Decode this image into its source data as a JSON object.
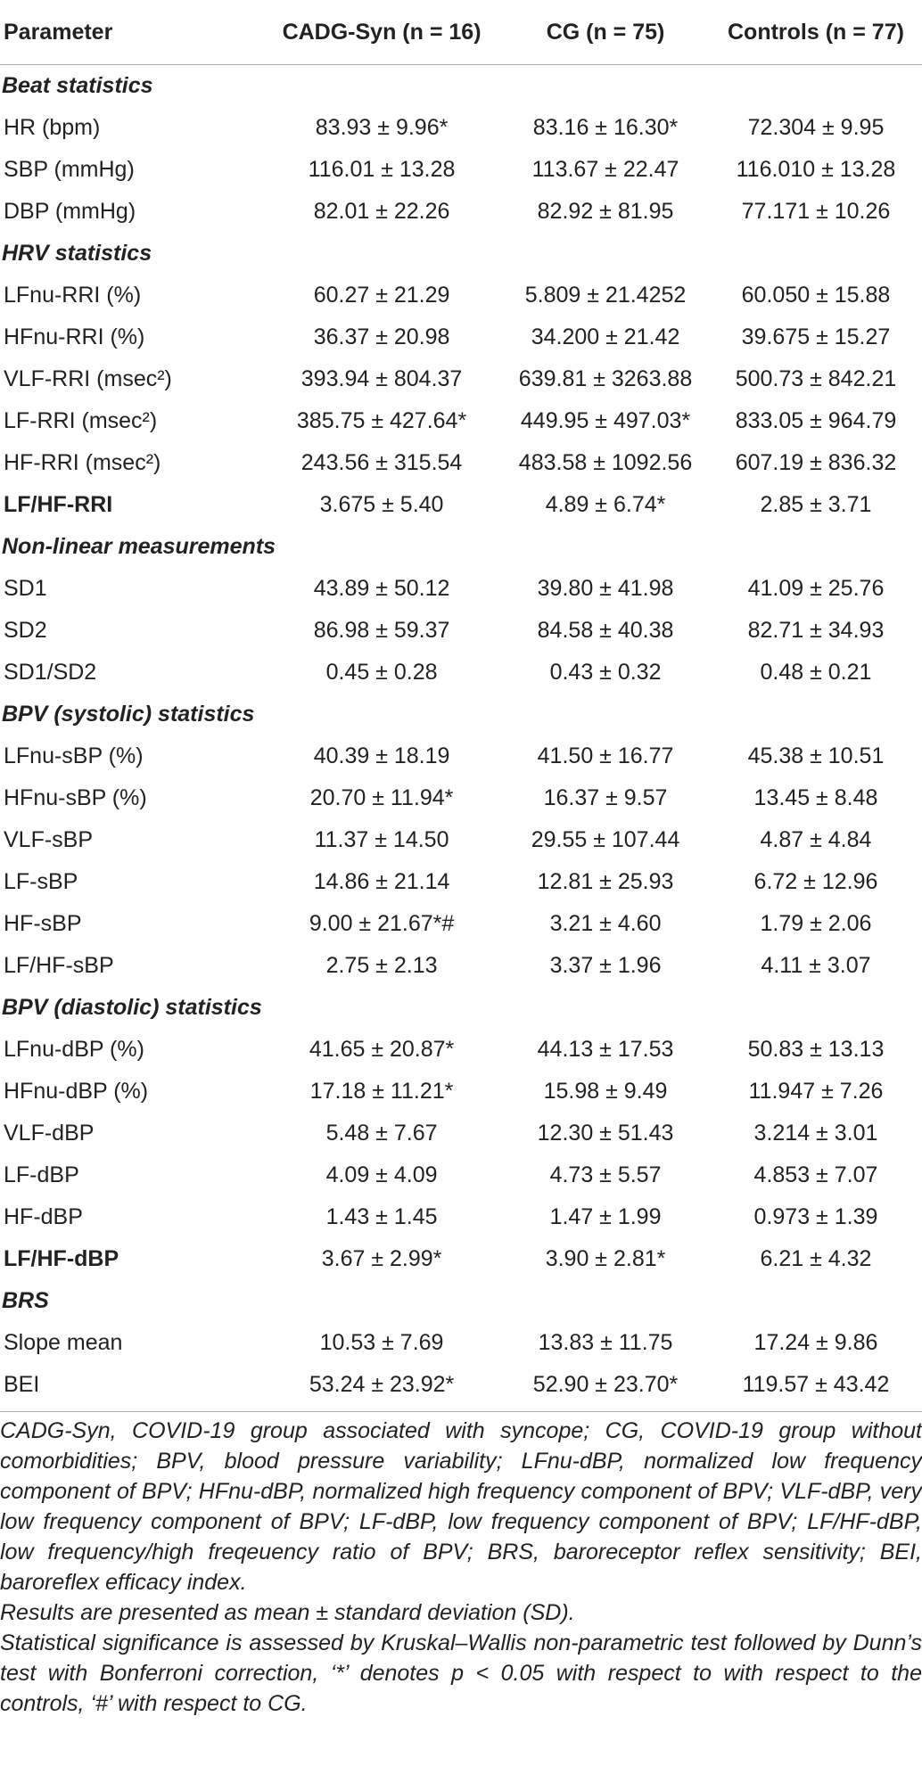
{
  "table": {
    "columns": [
      "Parameter",
      "CADG-Syn (n = 16)",
      "CG (n = 75)",
      "Controls (n = 77)"
    ],
    "sections": [
      {
        "title": "Beat statistics",
        "rows": [
          {
            "parameter": "HR (bpm)",
            "values": [
              "83.93 ± 9.96*",
              "83.16 ± 16.30*",
              "72.304 ± 9.95"
            ]
          },
          {
            "parameter": "SBP (mmHg)",
            "values": [
              "116.01 ± 13.28",
              "113.67 ± 22.47",
              "116.010 ± 13.28"
            ]
          },
          {
            "parameter": "DBP (mmHg)",
            "values": [
              "82.01 ± 22.26",
              "82.92 ± 81.95",
              "77.171 ± 10.26"
            ]
          }
        ]
      },
      {
        "title": "HRV statistics",
        "rows": [
          {
            "parameter": "LFnu-RRI (%)",
            "values": [
              "60.27 ± 21.29",
              "5.809 ± 21.4252",
              "60.050 ± 15.88"
            ]
          },
          {
            "parameter": "HFnu-RRI (%)",
            "values": [
              "36.37 ± 20.98",
              "34.200 ± 21.42",
              "39.675 ± 15.27"
            ]
          },
          {
            "parameter": "VLF-RRI (msec²)",
            "values": [
              "393.94 ± 804.37",
              "639.81 ± 3263.88",
              "500.73 ± 842.21"
            ]
          },
          {
            "parameter": "LF-RRI (msec²)",
            "values": [
              "385.75 ± 427.64*",
              "449.95 ± 497.03*",
              "833.05 ± 964.79"
            ]
          },
          {
            "parameter": "HF-RRI (msec²)",
            "values": [
              "243.56 ± 315.54",
              "483.58 ± 1092.56",
              "607.19 ± 836.32"
            ]
          },
          {
            "parameter": "LF/HF-RRI",
            "bold": true,
            "values": [
              "3.675 ± 5.40",
              "4.89 ± 6.74*",
              "2.85 ± 3.71"
            ]
          }
        ]
      },
      {
        "title": "Non-linear measurements",
        "rows": [
          {
            "parameter": "SD1",
            "values": [
              "43.89 ± 50.12",
              "39.80 ± 41.98",
              "41.09 ± 25.76"
            ]
          },
          {
            "parameter": "SD2",
            "values": [
              "86.98 ± 59.37",
              "84.58 ± 40.38",
              "82.71 ± 34.93"
            ]
          },
          {
            "parameter": "SD1/SD2",
            "values": [
              "0.45 ± 0.28",
              "0.43 ± 0.32",
              "0.48 ± 0.21"
            ]
          }
        ]
      },
      {
        "title": "BPV (systolic) statistics",
        "rows": [
          {
            "parameter": "LFnu-sBP (%)",
            "values": [
              "40.39 ± 18.19",
              "41.50 ± 16.77",
              "45.38 ± 10.51"
            ]
          },
          {
            "parameter": "HFnu-sBP (%)",
            "values": [
              "20.70 ± 11.94*",
              "16.37 ± 9.57",
              "13.45 ± 8.48"
            ]
          },
          {
            "parameter": "VLF-sBP",
            "values": [
              "11.37 ± 14.50",
              "29.55 ± 107.44",
              "4.87 ± 4.84"
            ]
          },
          {
            "parameter": "LF-sBP",
            "values": [
              "14.86 ± 21.14",
              "12.81 ± 25.93",
              "6.72 ± 12.96"
            ]
          },
          {
            "parameter": "HF-sBP",
            "values": [
              "9.00 ± 21.67*#",
              "3.21 ± 4.60",
              "1.79 ± 2.06"
            ]
          },
          {
            "parameter": "LF/HF-sBP",
            "values": [
              "2.75 ± 2.13",
              "3.37 ± 1.96",
              "4.11 ± 3.07"
            ]
          }
        ]
      },
      {
        "title": "BPV (diastolic) statistics",
        "rows": [
          {
            "parameter": "LFnu-dBP (%)",
            "values": [
              "41.65 ± 20.87*",
              "44.13 ± 17.53",
              "50.83 ± 13.13"
            ]
          },
          {
            "parameter": "HFnu-dBP (%)",
            "values": [
              "17.18 ± 11.21*",
              "15.98 ± 9.49",
              "11.947 ± 7.26"
            ]
          },
          {
            "parameter": "VLF-dBP",
            "values": [
              "5.48 ± 7.67",
              "12.30 ± 51.43",
              "3.214 ± 3.01"
            ]
          },
          {
            "parameter": "LF-dBP",
            "values": [
              "4.09 ± 4.09",
              "4.73 ± 5.57",
              "4.853 ± 7.07"
            ]
          },
          {
            "parameter": "HF-dBP",
            "values": [
              "1.43 ± 1.45",
              "1.47 ± 1.99",
              "0.973 ± 1.39"
            ]
          },
          {
            "parameter": "LF/HF-dBP",
            "bold": true,
            "values": [
              "3.67 ± 2.99*",
              "3.90 ± 2.81*",
              "6.21 ± 4.32"
            ]
          }
        ]
      },
      {
        "title": "BRS",
        "rows": [
          {
            "parameter": "Slope mean",
            "values": [
              "10.53 ± 7.69",
              "13.83 ± 11.75",
              "17.24 ± 9.86"
            ]
          },
          {
            "parameter": "BEI",
            "values": [
              "53.24 ± 23.92*",
              "52.90 ± 23.70*",
              "119.57 ± 43.42"
            ]
          }
        ]
      }
    ]
  },
  "footnotes": [
    "CADG-Syn, COVID-19 group associated with syncope; CG, COVID-19 group without comorbidities; BPV, blood pressure variability; LFnu-dBP, normalized low frequency component of BPV; HFnu-dBP, normalized high frequency component of BPV; VLF-dBP, very low frequency component of BPV; LF-dBP, low frequency component of BPV; LF/HF-dBP, low frequency/high freqeuency ratio of BPV; BRS, baroreceptor reflex sensitivity; BEI, baroreflex efficacy index.",
    "Results are presented as mean ± standard deviation (SD).",
    "Statistical significance is assessed by Kruskal–Wallis non-parametric test followed by Dunn’s test with Bonferroni correction, ‘*’ denotes p < 0.05 with respect to with respect to the controls, ‘#’ with respect to CG."
  ]
}
